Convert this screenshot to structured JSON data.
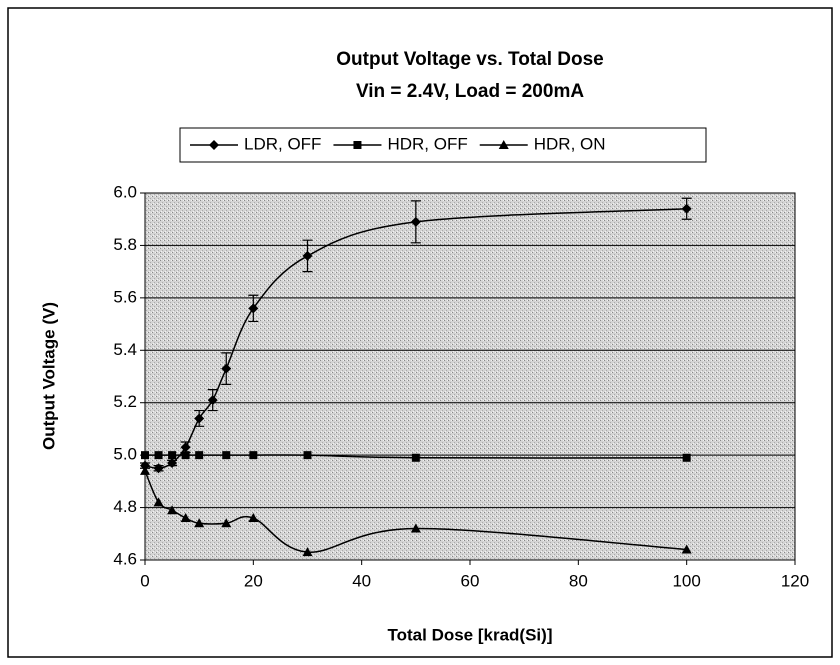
{
  "chart_data": {
    "type": "scatter",
    "title": "Output Voltage vs. Total Dose",
    "subtitle": "Vin = 2.4V, Load = 200mA",
    "x_label": "Total Dose [krad(Si)]",
    "y_label": "Output Voltage (V)",
    "xlim": [
      0,
      120
    ],
    "xticks": [
      0,
      20,
      40,
      60,
      80,
      100,
      120
    ],
    "ylim": [
      4.6,
      6.0
    ],
    "yticks": [
      {
        "value": 6,
        "label": "6.0"
      },
      5.8,
      5.6,
      5.4,
      5.2,
      {
        "value": 5,
        "label": "5.0"
      },
      4.8,
      4.6
    ],
    "grid": true,
    "legend": "top",
    "series": [
      {
        "name": "LDR, OFF",
        "color": "#000000",
        "marker": "diamond",
        "x": [
          0,
          2.5,
          5,
          7.5,
          10,
          12.5,
          15,
          20,
          30,
          50,
          100
        ],
        "values": [
          4.96,
          4.95,
          4.97,
          5.03,
          5.14,
          5.21,
          5.33,
          5.56,
          5.76,
          5.89,
          5.94
        ],
        "errors": [
          0.01,
          0.01,
          0.01,
          0.02,
          0.03,
          0.04,
          0.06,
          0.05,
          0.06,
          0.08,
          0.04
        ]
      },
      {
        "name": "HDR, OFF",
        "color": "#000000",
        "marker": "square",
        "x": [
          0,
          2.5,
          5,
          7.5,
          10,
          15,
          20,
          30,
          50,
          100
        ],
        "values": [
          5.0,
          5.0,
          5.0,
          5.0,
          5.0,
          5.0,
          5.0,
          5.0,
          4.99,
          4.99
        ]
      },
      {
        "name": "HDR, ON",
        "color": "#000000",
        "marker": "triangle",
        "x": [
          0,
          2.5,
          5,
          7.5,
          10,
          15,
          20,
          30,
          50,
          100
        ],
        "values": [
          4.94,
          4.82,
          4.79,
          4.76,
          4.74,
          4.74,
          4.76,
          4.63,
          4.72,
          4.64
        ]
      }
    ]
  }
}
